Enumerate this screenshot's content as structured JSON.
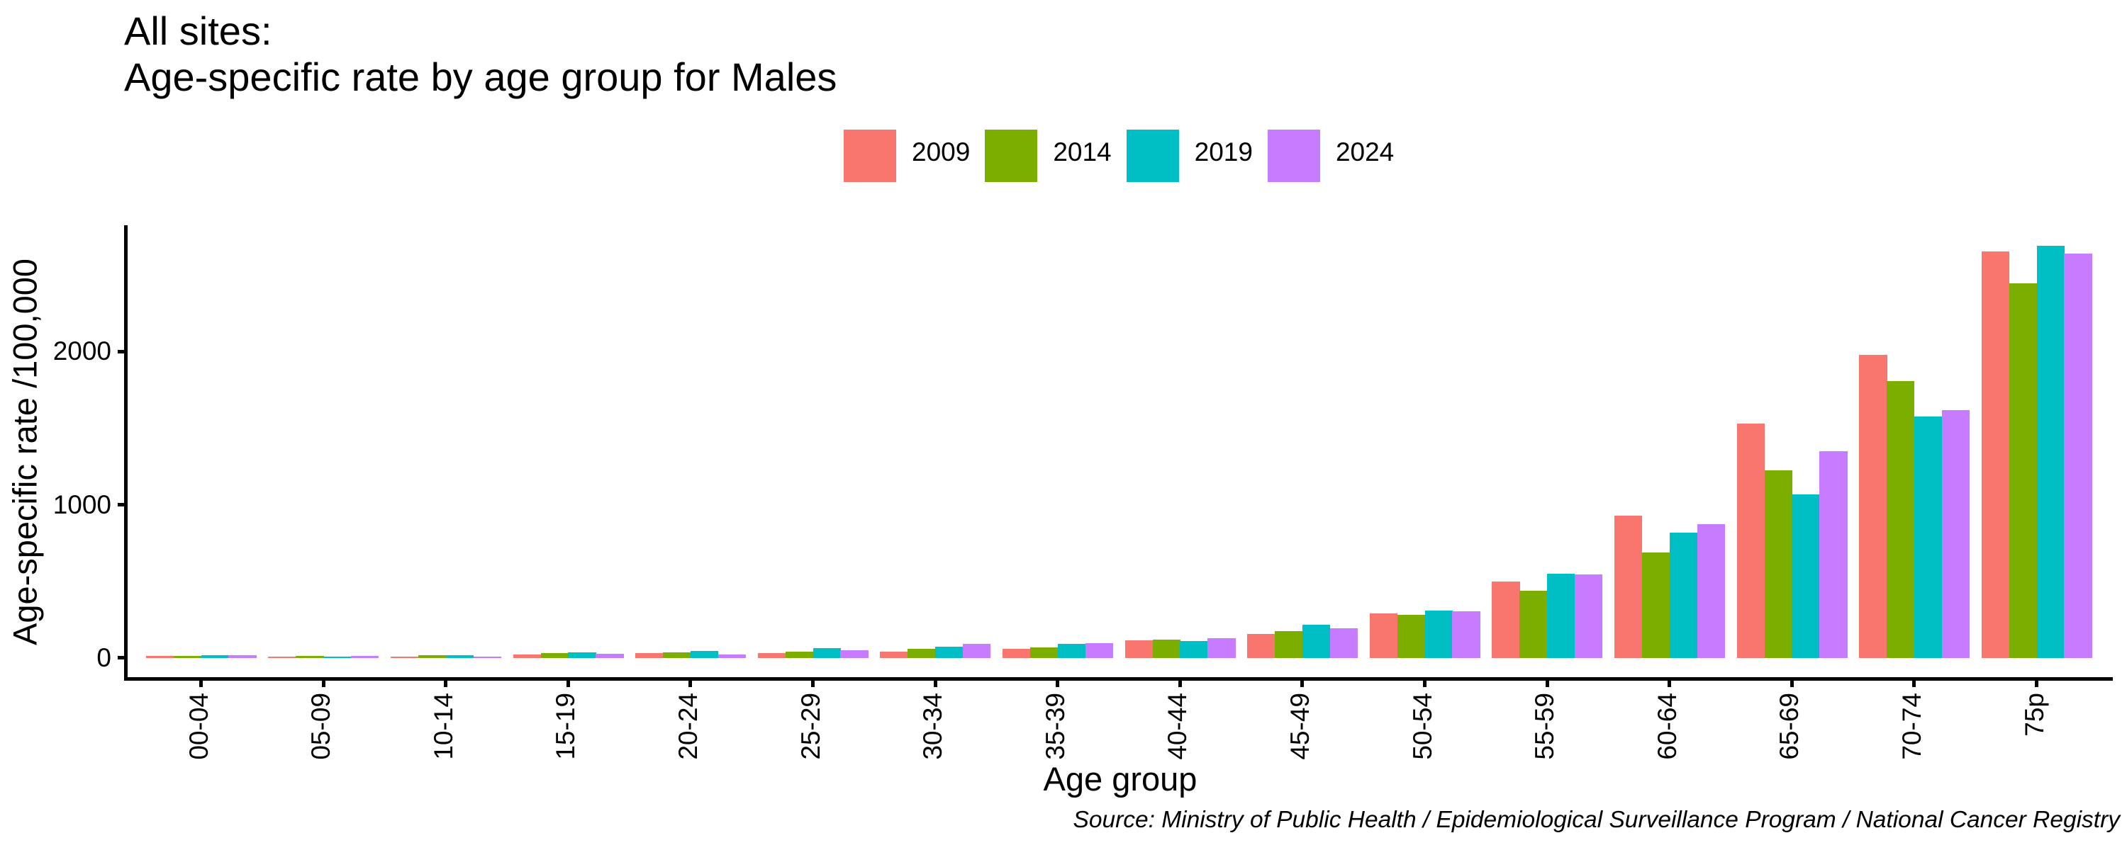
{
  "title_line1": "All sites:",
  "title_line2": "Age-specific rate by age group for Males",
  "caption": "Source: Ministry of Public Health / Epidemiological Surveillance Program / National Cancer Registry",
  "chart_data": {
    "type": "bar",
    "subtype": "grouped-vertical",
    "title": "All sites:\nAge-specific rate by age group for Males",
    "xlabel": "Age group",
    "ylabel": "Age-specific rate /100,000",
    "yticks": [
      0,
      1000,
      2000
    ],
    "ylim_data_max": 2691,
    "grid": false,
    "legend_position": "top-center",
    "background_color": "#ffffff",
    "text_color": "#000000",
    "axis_color": "#000000",
    "categories": [
      "00-04",
      "05-09",
      "10-14",
      "15-19",
      "20-24",
      "25-29",
      "30-34",
      "35-39",
      "40-44",
      "45-49",
      "50-54",
      "55-59",
      "60-64",
      "65-69",
      "70-74",
      "75p"
    ],
    "series": [
      {
        "name": "2009",
        "color": "#F8766D",
        "values": [
          12,
          8,
          9,
          24,
          30,
          33,
          43,
          58,
          116,
          159,
          289,
          500,
          927,
          1530,
          1978,
          2654
        ]
      },
      {
        "name": "2014",
        "color": "#7CAE00",
        "values": [
          13,
          15,
          16,
          30,
          35,
          41,
          62,
          67,
          118,
          177,
          280,
          440,
          687,
          1223,
          1808,
          2445
        ]
      },
      {
        "name": "2019",
        "color": "#00BFC4",
        "values": [
          18,
          9,
          16,
          36,
          44,
          66,
          75,
          91,
          112,
          215,
          309,
          552,
          817,
          1069,
          1575,
          2691
        ]
      },
      {
        "name": "2024",
        "color": "#C77CFF",
        "values": [
          16,
          15,
          8,
          29,
          25,
          50,
          90,
          95,
          131,
          196,
          304,
          544,
          873,
          1348,
          1620,
          2639
        ]
      }
    ]
  }
}
